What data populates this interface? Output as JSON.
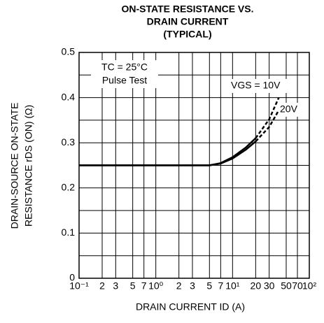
{
  "chart_data": {
    "type": "line",
    "title": [
      "ON-STATE RESISTANCE VS.",
      "DRAIN CURRENT",
      "(TYPICAL)"
    ],
    "xlabel": "DRAIN CURRENT   ID (A)",
    "ylabel": [
      "DRAIN-SOURCE ON-STATE",
      "RESISTANCE   rDS (ON) (Ω)"
    ],
    "annotations": [
      "TC = 25°C",
      "Pulse Test"
    ],
    "x": [
      0.1,
      1,
      5,
      7,
      10,
      15,
      20,
      30,
      40
    ],
    "series": [
      {
        "name": "VGS = 10V",
        "color": "#000000",
        "values": [
          0.25,
          0.25,
          0.25,
          0.255,
          0.268,
          0.29,
          0.31,
          0.352,
          0.4
        ]
      },
      {
        "name": "20V",
        "color": "#000000",
        "values": [
          0.25,
          0.25,
          0.25,
          0.254,
          0.265,
          0.285,
          0.303,
          0.335,
          0.372
        ]
      }
    ],
    "dashed_beyond_x": 20,
    "xscale": "log",
    "xlim": [
      0.1,
      100
    ],
    "xticks": [
      {
        "value": 0.1,
        "label": "10⁻¹"
      },
      {
        "value": 0.2,
        "label": "2"
      },
      {
        "value": 0.3,
        "label": "3"
      },
      {
        "value": 0.5,
        "label": "5"
      },
      {
        "value": 0.7,
        "label": "7"
      },
      {
        "value": 1,
        "label": "10⁰"
      },
      2,
      3,
      5,
      7,
      {
        "value": 10,
        "label": "10¹"
      },
      20,
      30,
      50,
      70,
      {
        "value": 100,
        "label": "10²"
      }
    ],
    "ylim": [
      0,
      0.5
    ],
    "yticks": [
      0,
      0.1,
      0.2,
      0.3,
      0.4,
      0.5
    ],
    "yminor": [
      0.05,
      0.15,
      0.25,
      0.35,
      0.45
    ],
    "grid": true
  }
}
